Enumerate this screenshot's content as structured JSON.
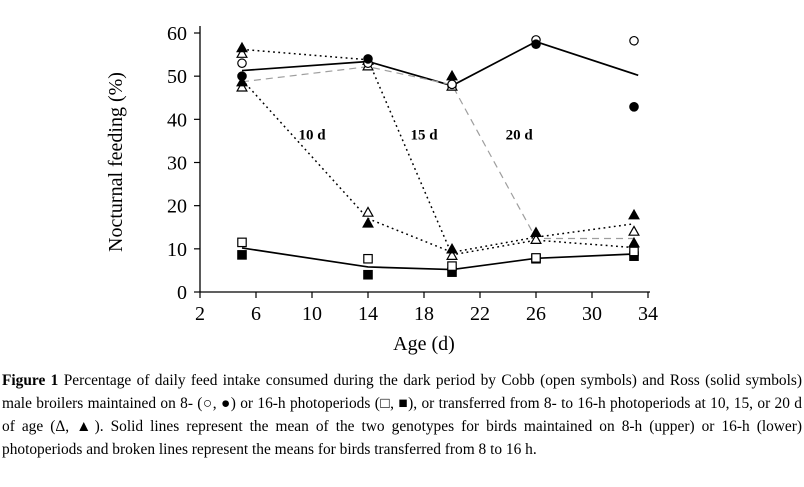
{
  "figure": {
    "caption_label": "Figure 1",
    "caption_text": "Percentage of daily feed intake consumed during the dark period by Cobb (open symbols) and Ross (solid symbols) male broilers maintained on 8- (○, ●) or 16-h photoperiods (□, ■), or transferred from 8- to 16-h photoperiods at 10, 15, or 20 d of age (Δ, ▲). Solid lines represent the mean of the two genotypes for birds maintained on 8-h (upper) or 16-h (lower) photoperiods and broken lines represent the means for birds transferred from 8 to 16 h."
  },
  "chart_data": {
    "type": "line",
    "title": "",
    "xlabel": "Age (d)",
    "ylabel": "Nocturnal feeding (%)",
    "xlim": [
      2,
      34
    ],
    "ylim": [
      0,
      60
    ],
    "x_ticks": [
      2,
      6,
      10,
      14,
      18,
      22,
      26,
      30,
      34
    ],
    "y_ticks": [
      0,
      10,
      20,
      30,
      40,
      50,
      60
    ],
    "grid": false,
    "legend": "none (described in caption)",
    "colors": {
      "line": "#000000",
      "dashed_gray": "#9e9e9e",
      "open_fill": "#ffffff"
    },
    "series": [
      {
        "name": "mean-8h-upper-solid",
        "style": "solid",
        "color": "#000000",
        "points": [
          [
            5,
            51.3
          ],
          [
            14,
            53.4
          ],
          [
            20,
            47.8
          ],
          [
            26,
            58.0
          ],
          [
            33.3,
            50.2
          ]
        ]
      },
      {
        "name": "mean-16h-lower-solid",
        "style": "solid",
        "color": "#000000",
        "points": [
          [
            5,
            10.2
          ],
          [
            14,
            5.8
          ],
          [
            20,
            5.2
          ],
          [
            26,
            7.8
          ],
          [
            33,
            8.8
          ]
        ]
      },
      {
        "name": "transfer-10d-dotted",
        "style": "dotted",
        "color": "#000000",
        "points": [
          [
            5,
            49.2
          ],
          [
            14,
            17.0
          ],
          [
            20,
            9.2
          ],
          [
            26,
            12.7
          ],
          [
            33,
            15.8
          ]
        ]
      },
      {
        "name": "transfer-15d-dotted",
        "style": "dotted",
        "color": "#000000",
        "points": [
          [
            5,
            56.2
          ],
          [
            14,
            53.8
          ],
          [
            20,
            8.6
          ],
          [
            26,
            12.0
          ],
          [
            33,
            10.3
          ]
        ]
      },
      {
        "name": "transfer-20d-dashed",
        "style": "dashed",
        "color": "#9e9e9e",
        "points": [
          [
            5,
            48.7
          ],
          [
            14,
            52.2
          ],
          [
            20,
            48.0
          ],
          [
            26,
            12.4
          ],
          [
            33,
            12.4
          ]
        ]
      }
    ],
    "markers": [
      {
        "symbol": "triangle-open",
        "x": 5,
        "y": 47.4
      },
      {
        "symbol": "triangle-filled",
        "x": 5,
        "y": 48.6
      },
      {
        "symbol": "circle-filled",
        "x": 5,
        "y": 50.0
      },
      {
        "symbol": "circle-open",
        "x": 5,
        "y": 53.0
      },
      {
        "symbol": "triangle-open",
        "x": 5,
        "y": 55.2
      },
      {
        "symbol": "triangle-filled",
        "x": 5,
        "y": 56.5
      },
      {
        "symbol": "square-filled",
        "x": 5,
        "y": 8.6
      },
      {
        "symbol": "square-open",
        "x": 5,
        "y": 11.5
      },
      {
        "symbol": "triangle-filled",
        "x": 14,
        "y": 53.6
      },
      {
        "symbol": "triangle-open",
        "x": 14,
        "y": 52.3
      },
      {
        "symbol": "circle-open",
        "x": 14,
        "y": 53.0
      },
      {
        "symbol": "circle-filled",
        "x": 14,
        "y": 54.0
      },
      {
        "symbol": "triangle-open",
        "x": 14,
        "y": 18.4
      },
      {
        "symbol": "triangle-filled",
        "x": 14,
        "y": 15.9
      },
      {
        "symbol": "square-open",
        "x": 14,
        "y": 7.7
      },
      {
        "symbol": "square-filled",
        "x": 14,
        "y": 4.0
      },
      {
        "symbol": "circle-filled",
        "x": 20,
        "y": 47.8
      },
      {
        "symbol": "triangle-open",
        "x": 20,
        "y": 47.6
      },
      {
        "symbol": "circle-open",
        "x": 20,
        "y": 48.1
      },
      {
        "symbol": "triangle-filled",
        "x": 20,
        "y": 50.0
      },
      {
        "symbol": "square-filled",
        "x": 20,
        "y": 4.6
      },
      {
        "symbol": "square-open",
        "x": 20,
        "y": 6.0
      },
      {
        "symbol": "triangle-open",
        "x": 20,
        "y": 8.4
      },
      {
        "symbol": "triangle-filled",
        "x": 20,
        "y": 9.9
      },
      {
        "symbol": "circle-open",
        "x": 26,
        "y": 58.4
      },
      {
        "symbol": "circle-filled",
        "x": 26,
        "y": 57.4
      },
      {
        "symbol": "triangle-open",
        "x": 26,
        "y": 12.1
      },
      {
        "symbol": "triangle-filled",
        "x": 26,
        "y": 13.7
      },
      {
        "symbol": "square-filled",
        "x": 26,
        "y": 7.7
      },
      {
        "symbol": "square-open",
        "x": 26,
        "y": 7.9
      },
      {
        "symbol": "circle-open",
        "x": 33,
        "y": 58.2
      },
      {
        "symbol": "circle-filled",
        "x": 33,
        "y": 42.9
      },
      {
        "symbol": "triangle-filled",
        "x": 33,
        "y": 17.8
      },
      {
        "symbol": "triangle-open",
        "x": 33,
        "y": 14.0
      },
      {
        "symbol": "triangle-filled",
        "x": 33,
        "y": 11.3
      },
      {
        "symbol": "square-filled",
        "x": 33,
        "y": 8.3
      },
      {
        "symbol": "square-open",
        "x": 33,
        "y": 9.4
      }
    ],
    "annotations": [
      {
        "text": "10 d",
        "x": 10.0,
        "y": 36.5
      },
      {
        "text": "15 d",
        "x": 18.0,
        "y": 36.5
      },
      {
        "text": "20 d",
        "x": 24.8,
        "y": 36.5
      }
    ]
  }
}
